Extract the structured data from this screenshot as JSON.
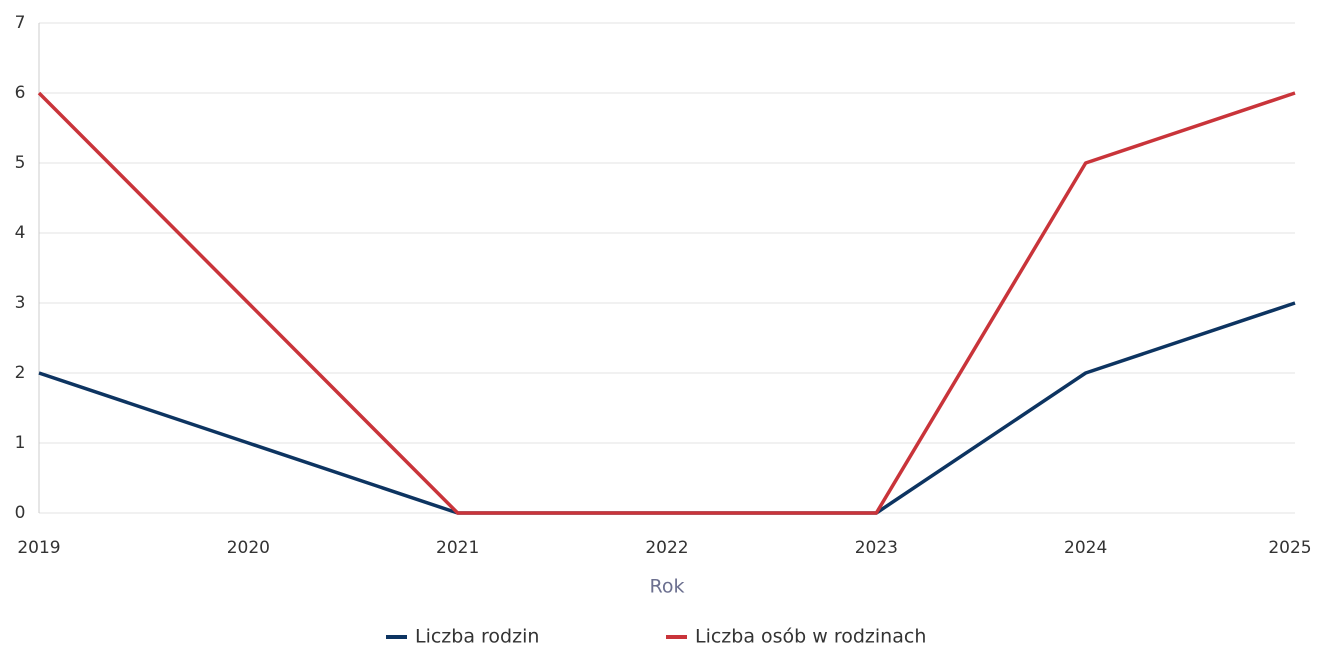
{
  "chart_data": {
    "type": "line",
    "x_label": "Rok",
    "x": [
      2019,
      2020,
      2021,
      2022,
      2023,
      2024,
      2025
    ],
    "xlim": [
      2019,
      2025
    ],
    "xticks": [
      2019,
      2020,
      2021,
      2022,
      2023,
      2024,
      2025
    ],
    "ylim": [
      0,
      7
    ],
    "yticks": [
      0,
      1,
      2,
      3,
      4,
      5,
      6,
      7
    ],
    "grid": true,
    "legend": "bottom",
    "series": [
      {
        "name": "Liczba rodzin",
        "color": "#0d3461",
        "values": [
          2,
          1,
          0,
          0,
          0,
          2,
          3
        ]
      },
      {
        "name": "Liczba osób w rodzinach",
        "color": "#c9343a",
        "values": [
          6,
          3,
          0,
          0,
          0,
          5,
          6
        ]
      }
    ]
  }
}
